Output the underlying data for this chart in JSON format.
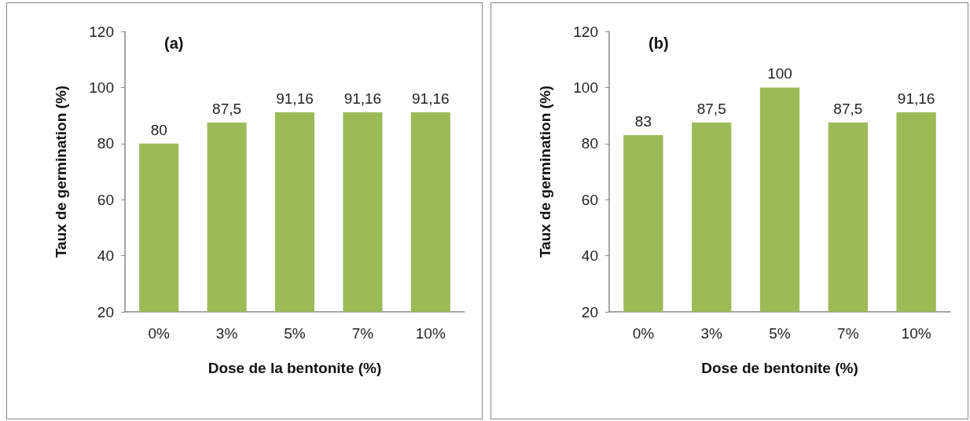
{
  "chart_data": [
    {
      "type": "bar",
      "title": "(a)",
      "xlabel": "Dose de la bentonite (%)",
      "ylabel": "Taux de germination (%)",
      "categories": [
        "0%",
        "3%",
        "5%",
        "7%",
        "10%"
      ],
      "values": [
        80,
        87.5,
        91.16,
        91.16,
        91.16
      ],
      "value_labels": [
        "80",
        "87,5",
        "91,16",
        "91,16",
        "91,16"
      ],
      "color": "#9bbb59",
      "ylim": [
        20,
        120
      ],
      "yticks": [
        20,
        40,
        60,
        80,
        100,
        120
      ]
    },
    {
      "type": "bar",
      "title": "(b)",
      "xlabel": "Dose de bentonite (%)",
      "ylabel": "Taux de germination (%)",
      "categories": [
        "0%",
        "3%",
        "5%",
        "7%",
        "10%"
      ],
      "values": [
        83,
        87.5,
        100,
        87.5,
        91.16
      ],
      "value_labels": [
        "83",
        "87,5",
        "100",
        "87,5",
        "91,16"
      ],
      "color": "#9bbb59",
      "ylim": [
        20,
        120
      ],
      "yticks": [
        20,
        40,
        60,
        80,
        100,
        120
      ]
    }
  ]
}
